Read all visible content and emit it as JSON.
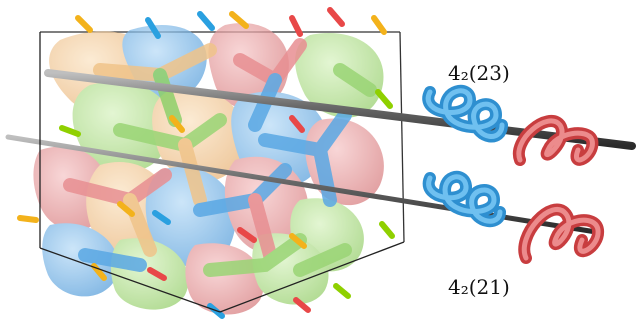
{
  "labels": {
    "top_axis": "4₂(23)",
    "bottom_axis": "4₂(21)"
  },
  "colors": {
    "network_blue": "#59a8e6",
    "network_red": "#e58d8f",
    "network_green": "#a7dd7b",
    "network_orange": "#f2c58c",
    "helix_blue": "#2e9ad8",
    "helix_red": "#d85050",
    "axis_rod": "#555555",
    "frame": "#222222"
  },
  "icons": [
    "blue-helix-icon",
    "red-helix-icon"
  ]
}
